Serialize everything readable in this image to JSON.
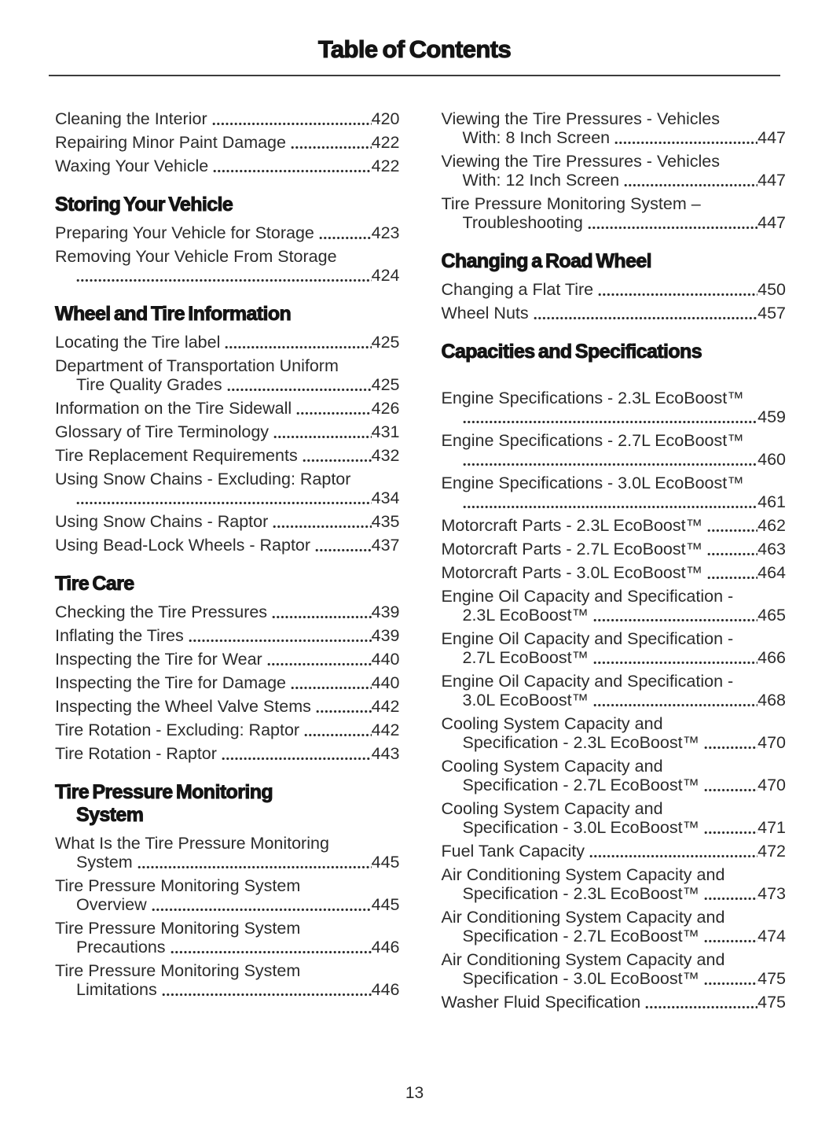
{
  "colors": {
    "ink": "#2b2b2b",
    "heading_ink": "#151515"
  },
  "page": {
    "title": "Table of Contents",
    "number": "13"
  },
  "columns": [
    {
      "name": "left",
      "sections": [
        {
          "heading_lines": [],
          "entries": [
            {
              "lines": [
                "Cleaning the Interior"
              ],
              "page": "420"
            },
            {
              "lines": [
                "Repairing Minor Paint Damage"
              ],
              "page": "422"
            },
            {
              "lines": [
                "Waxing Your Vehicle"
              ],
              "page": "422"
            }
          ]
        },
        {
          "heading_lines": [
            "Storing Your Vehicle"
          ],
          "entries": [
            {
              "lines": [
                "Preparing Your Vehicle for Storage"
              ],
              "page": "423"
            },
            {
              "lines": [
                "Removing Your Vehicle From Storage",
                ""
              ],
              "page": "424"
            }
          ]
        },
        {
          "heading_lines": [
            "Wheel and Tire Information"
          ],
          "entries": [
            {
              "lines": [
                "Locating the Tire label"
              ],
              "page": "425"
            },
            {
              "lines": [
                "Department of Transportation Uniform",
                "Tire Quality Grades"
              ],
              "page": "425"
            },
            {
              "lines": [
                "Information on the Tire Sidewall"
              ],
              "page": "426"
            },
            {
              "lines": [
                "Glossary of Tire Terminology"
              ],
              "page": "431"
            },
            {
              "lines": [
                "Tire Replacement Requirements"
              ],
              "page": "432"
            },
            {
              "lines": [
                "Using Snow Chains - Excluding: Raptor",
                ""
              ],
              "page": "434"
            },
            {
              "lines": [
                "Using Snow Chains - Raptor"
              ],
              "page": "435"
            },
            {
              "lines": [
                "Using Bead-Lock Wheels - Raptor"
              ],
              "page": "437"
            }
          ]
        },
        {
          "heading_lines": [
            "Tire Care"
          ],
          "entries": [
            {
              "lines": [
                "Checking the Tire Pressures"
              ],
              "page": "439"
            },
            {
              "lines": [
                "Inflating the Tires"
              ],
              "page": "439"
            },
            {
              "lines": [
                "Inspecting the Tire for Wear"
              ],
              "page": "440"
            },
            {
              "lines": [
                "Inspecting the Tire for Damage"
              ],
              "page": "440"
            },
            {
              "lines": [
                "Inspecting the Wheel Valve Stems"
              ],
              "page": "442"
            },
            {
              "lines": [
                "Tire Rotation - Excluding: Raptor"
              ],
              "page": "442"
            },
            {
              "lines": [
                "Tire Rotation - Raptor"
              ],
              "page": "443"
            }
          ]
        },
        {
          "heading_lines": [
            "Tire Pressure Monitoring",
            "System"
          ],
          "entries": [
            {
              "lines": [
                "What Is the Tire Pressure Monitoring",
                "System"
              ],
              "page": "445"
            },
            {
              "lines": [
                "Tire Pressure Monitoring System",
                "Overview"
              ],
              "page": "445"
            },
            {
              "lines": [
                "Tire Pressure Monitoring System",
                "Precautions"
              ],
              "page": "446"
            },
            {
              "lines": [
                "Tire Pressure Monitoring System",
                "Limitations"
              ],
              "page": "446"
            }
          ]
        }
      ]
    },
    {
      "name": "right",
      "sections": [
        {
          "heading_lines": [],
          "entries": [
            {
              "lines": [
                "Viewing the Tire Pressures - Vehicles",
                "With: 8 Inch Screen"
              ],
              "page": "447"
            },
            {
              "lines": [
                "Viewing the Tire Pressures - Vehicles",
                "With: 12 Inch Screen"
              ],
              "page": "447"
            },
            {
              "lines": [
                "Tire Pressure Monitoring System –",
                "Troubleshooting"
              ],
              "page": "447"
            }
          ]
        },
        {
          "heading_lines": [
            "Changing a Road Wheel"
          ],
          "entries": [
            {
              "lines": [
                "Changing a Flat Tire"
              ],
              "page": "450"
            },
            {
              "lines": [
                "Wheel Nuts"
              ],
              "page": "457"
            }
          ]
        },
        {
          "heading_lines": [
            "Capacities and Specifications"
          ],
          "extra_gap": true,
          "entries": [
            {
              "lines": [
                "Engine Specifications - 2.3L EcoBoost™",
                ""
              ],
              "page": "459"
            },
            {
              "lines": [
                "Engine Specifications - 2.7L EcoBoost™",
                ""
              ],
              "page": "460"
            },
            {
              "lines": [
                "Engine Specifications - 3.0L EcoBoost™",
                ""
              ],
              "page": "461"
            },
            {
              "lines": [
                "Motorcraft Parts - 2.3L EcoBoost™"
              ],
              "page": "462"
            },
            {
              "lines": [
                "Motorcraft Parts - 2.7L EcoBoost™"
              ],
              "page": "463"
            },
            {
              "lines": [
                "Motorcraft Parts - 3.0L EcoBoost™"
              ],
              "page": "464"
            },
            {
              "lines": [
                "Engine Oil Capacity and Specification -",
                "2.3L EcoBoost™"
              ],
              "page": "465"
            },
            {
              "lines": [
                "Engine Oil Capacity and Specification -",
                "2.7L EcoBoost™"
              ],
              "page": "466"
            },
            {
              "lines": [
                "Engine Oil Capacity and Specification -",
                "3.0L EcoBoost™"
              ],
              "page": "468"
            },
            {
              "lines": [
                "Cooling System Capacity and",
                "Specification - 2.3L EcoBoost™"
              ],
              "page": "470"
            },
            {
              "lines": [
                "Cooling System Capacity and",
                "Specification - 2.7L EcoBoost™"
              ],
              "page": "470"
            },
            {
              "lines": [
                "Cooling System Capacity and",
                "Specification - 3.0L EcoBoost™"
              ],
              "page": "471"
            },
            {
              "lines": [
                "Fuel Tank Capacity"
              ],
              "page": "472"
            },
            {
              "lines": [
                "Air Conditioning System Capacity and",
                "Specification - 2.3L EcoBoost™"
              ],
              "page": "473"
            },
            {
              "lines": [
                "Air Conditioning System Capacity and",
                "Specification - 2.7L EcoBoost™"
              ],
              "page": "474"
            },
            {
              "lines": [
                "Air Conditioning System Capacity and",
                "Specification - 3.0L EcoBoost™"
              ],
              "page": "475"
            },
            {
              "lines": [
                "Washer Fluid Specification"
              ],
              "page": "475"
            }
          ]
        }
      ]
    }
  ]
}
